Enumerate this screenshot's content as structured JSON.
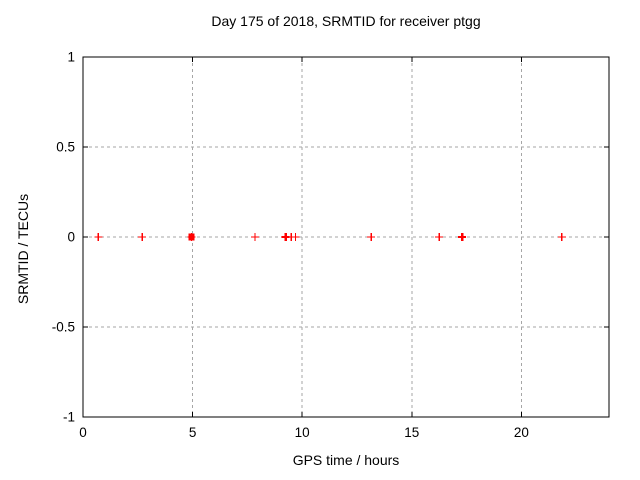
{
  "chart_data": {
    "type": "scatter",
    "title": "Day 175 of 2018, SRMTID for receiver ptgg",
    "xlabel": "GPS time / hours",
    "ylabel": "SRMTID / TECUs",
    "xlim": [
      0,
      24
    ],
    "ylim": [
      -1,
      1
    ],
    "xticks": [
      0,
      5,
      10,
      15,
      20
    ],
    "yticks": [
      1,
      0.5,
      0,
      -0.5,
      -1
    ],
    "grid": true,
    "legend_position": "none",
    "marker": "plus",
    "marker_color": "#ff0000",
    "grid_color": "#a6a6a6",
    "border_color": "#000000",
    "points": [
      {
        "x": 0.7,
        "y": 0,
        "weight": "normal"
      },
      {
        "x": 2.7,
        "y": 0,
        "weight": "normal"
      },
      {
        "x": 4.95,
        "y": 0,
        "weight": "cluster"
      },
      {
        "x": 7.85,
        "y": 0,
        "weight": "normal"
      },
      {
        "x": 9.25,
        "y": 0,
        "weight": "bold"
      },
      {
        "x": 9.5,
        "y": 0,
        "weight": "normal"
      },
      {
        "x": 9.7,
        "y": 0,
        "weight": "normal"
      },
      {
        "x": 13.15,
        "y": 0,
        "weight": "normal"
      },
      {
        "x": 16.25,
        "y": 0,
        "weight": "normal"
      },
      {
        "x": 17.3,
        "y": 0,
        "weight": "bold"
      },
      {
        "x": 21.85,
        "y": 0,
        "weight": "normal"
      }
    ]
  }
}
